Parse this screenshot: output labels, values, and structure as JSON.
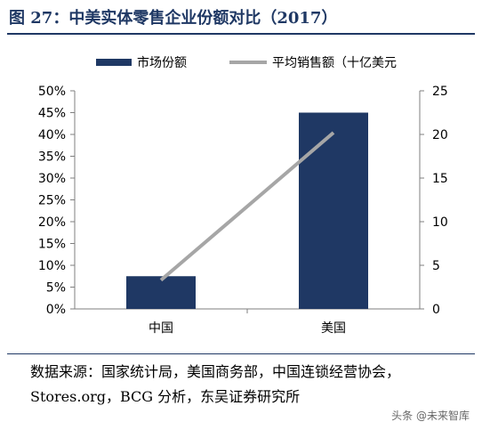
{
  "title": "图 27：中美实体零售企业份额对比（2017）",
  "source": "数据来源：国家统计局，美国商务部，中国连锁经营协会，Stores.org，BCG 分析，东吴证券研究所",
  "watermark": "头条 @未来智库",
  "chart_data": {
    "type": "bar",
    "categories": [
      "中国",
      "美国"
    ],
    "series": [
      {
        "name": "市场份额",
        "kind": "bar",
        "axis": "left",
        "values": [
          0.075,
          0.45
        ],
        "color": "#1f3864"
      },
      {
        "name": "平均销售额（十亿美元",
        "kind": "line",
        "axis": "right",
        "values": [
          3.3,
          20.2
        ],
        "color": "#a6a6a6"
      }
    ],
    "y_left": {
      "ylim": [
        0,
        0.5
      ],
      "ticks": [
        "0%",
        "5%",
        "10%",
        "15%",
        "20%",
        "25%",
        "30%",
        "35%",
        "40%",
        "45%",
        "50%"
      ]
    },
    "y_right": {
      "ylim": [
        0,
        25
      ],
      "ticks": [
        "0",
        "5",
        "10",
        "15",
        "20",
        "25"
      ]
    },
    "grid": false,
    "legend": "top"
  }
}
